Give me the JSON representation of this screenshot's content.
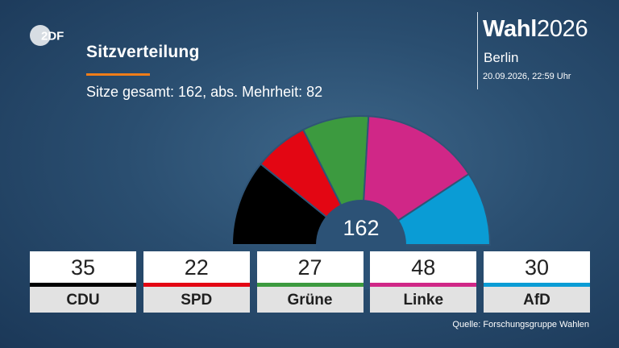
{
  "header": {
    "title": "Sitzverteilung",
    "subtitle": "Sitze gesamt: 162, abs. Mehrheit: 82"
  },
  "brand": {
    "wahl": "Wahl",
    "year": "2026",
    "region": "Berlin",
    "datetime": "20.09.2026, 22:59 Uhr"
  },
  "logo": {
    "text": "2DF",
    "icon": "zdf-logo-icon"
  },
  "chart_data": {
    "type": "pie",
    "variant": "parliament-semicircle",
    "title": "Sitzverteilung",
    "total": 162,
    "total_label": "162",
    "majority": 82,
    "categories": [
      "CDU",
      "SPD",
      "Grüne",
      "Linke",
      "AfD"
    ],
    "values": [
      35,
      22,
      27,
      48,
      30
    ],
    "colors": [
      "#000000",
      "#e30613",
      "#3c9a3f",
      "#d02787",
      "#0a9cd5"
    ]
  },
  "parties": [
    {
      "name": "CDU",
      "seats": "35",
      "color": "#000000"
    },
    {
      "name": "SPD",
      "seats": "22",
      "color": "#e30613"
    },
    {
      "name": "Grüne",
      "seats": "27",
      "color": "#3c9a3f"
    },
    {
      "name": "Linke",
      "seats": "48",
      "color": "#d02787"
    },
    {
      "name": "AfD",
      "seats": "30",
      "color": "#0a9cd5"
    }
  ],
  "footer": {
    "source": "Quelle: Forschungsgruppe Wahlen"
  }
}
